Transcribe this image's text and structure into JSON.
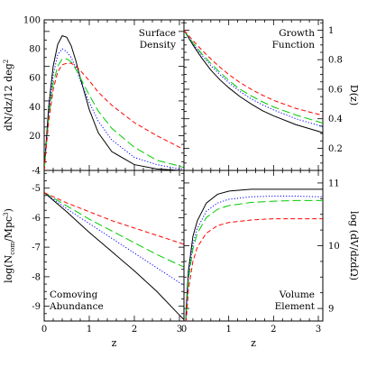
{
  "chart_data": [
    {
      "type": "line",
      "panel": "top-left",
      "title": [
        "Surface",
        "Density"
      ],
      "title_position": "top-right",
      "xlabel": "",
      "ylabel": "dN/dz/12 deg²",
      "ylabel_side": "left",
      "xlim": [
        0,
        3.1
      ],
      "ylim": [
        -4,
        100
      ],
      "xticks": [
        0,
        1,
        2,
        3
      ],
      "yticks": [
        -4,
        20,
        40,
        60,
        80,
        100
      ],
      "ytick_labels": [
        "-4",
        "20",
        "40",
        "60",
        "80",
        "100"
      ],
      "show_x_tick_labels": false,
      "series": [
        {
          "color": "#000000",
          "dash": "solid",
          "x": [
            0,
            0.1,
            0.2,
            0.3,
            0.4,
            0.5,
            0.6,
            0.7,
            0.8,
            1.0,
            1.2,
            1.5,
            2.0,
            2.5,
            3.0,
            3.1
          ],
          "y": [
            -4,
            40,
            68,
            83,
            89,
            88,
            82,
            72,
            60,
            38,
            22,
            9,
            0,
            -3,
            -4,
            -4
          ]
        },
        {
          "color": "#0000ff",
          "dash": "dotted",
          "x": [
            0,
            0.1,
            0.2,
            0.3,
            0.4,
            0.5,
            0.6,
            0.7,
            0.8,
            1.0,
            1.2,
            1.5,
            2.0,
            2.5,
            3.0,
            3.1
          ],
          "y": [
            -4,
            35,
            62,
            76,
            80,
            78,
            74,
            67,
            58,
            43,
            30,
            17,
            5,
            0,
            -3,
            -3
          ]
        },
        {
          "color": "#00cc00",
          "dash": "longdash",
          "x": [
            0,
            0.1,
            0.2,
            0.3,
            0.4,
            0.5,
            0.6,
            0.7,
            0.8,
            1.0,
            1.2,
            1.5,
            2.0,
            2.5,
            3.0,
            3.1
          ],
          "y": [
            -4,
            33,
            56,
            68,
            73,
            73,
            71,
            66,
            60,
            48,
            37,
            25,
            12,
            3,
            -1,
            -2
          ]
        },
        {
          "color": "#ff0000",
          "dash": "dashed",
          "x": [
            0,
            0.1,
            0.2,
            0.3,
            0.4,
            0.5,
            0.6,
            0.7,
            0.8,
            1.0,
            1.2,
            1.5,
            2.0,
            2.5,
            3.0,
            3.1
          ],
          "y": [
            -4,
            30,
            52,
            64,
            69,
            70,
            70,
            68,
            65,
            58,
            50,
            41,
            29,
            20,
            12,
            11
          ]
        }
      ]
    },
    {
      "type": "line",
      "panel": "top-right",
      "title": [
        "Growth",
        "Function"
      ],
      "title_position": "top-right",
      "xlabel": "",
      "ylabel": "D(z)",
      "ylabel_side": "right",
      "xlim": [
        0,
        3.1
      ],
      "ylim": [
        0.05,
        1.07
      ],
      "xticks": [
        0,
        1,
        2,
        3
      ],
      "yticks": [
        0.2,
        0.4,
        0.6,
        0.8,
        1.0
      ],
      "ytick_labels": [
        "0.2",
        "0.4",
        "0.6",
        "0.8",
        "1"
      ],
      "show_x_tick_labels": false,
      "series": [
        {
          "color": "#000000",
          "dash": "solid",
          "x": [
            0,
            0.2,
            0.4,
            0.6,
            0.8,
            1.0,
            1.25,
            1.5,
            1.75,
            2.0,
            2.5,
            3.0,
            3.1
          ],
          "y": [
            1.0,
            0.9,
            0.81,
            0.73,
            0.665,
            0.61,
            0.55,
            0.5,
            0.455,
            0.42,
            0.36,
            0.315,
            0.305
          ]
        },
        {
          "color": "#0000ff",
          "dash": "dotted",
          "x": [
            0,
            0.2,
            0.4,
            0.6,
            0.8,
            1.0,
            1.25,
            1.5,
            1.75,
            2.0,
            2.5,
            3.0,
            3.1
          ],
          "y": [
            1.0,
            0.91,
            0.83,
            0.76,
            0.7,
            0.645,
            0.585,
            0.535,
            0.495,
            0.46,
            0.4,
            0.355,
            0.345
          ]
        },
        {
          "color": "#00cc00",
          "dash": "longdash",
          "x": [
            0,
            0.2,
            0.4,
            0.6,
            0.8,
            1.0,
            1.25,
            1.5,
            1.75,
            2.0,
            2.5,
            3.0,
            3.1
          ],
          "y": [
            1.0,
            0.915,
            0.84,
            0.775,
            0.715,
            0.66,
            0.6,
            0.555,
            0.515,
            0.48,
            0.425,
            0.38,
            0.37
          ]
        },
        {
          "color": "#ff0000",
          "dash": "dashed",
          "x": [
            0,
            0.2,
            0.4,
            0.6,
            0.8,
            1.0,
            1.25,
            1.5,
            1.75,
            2.0,
            2.5,
            3.0,
            3.1
          ],
          "y": [
            1.0,
            0.93,
            0.865,
            0.805,
            0.75,
            0.7,
            0.645,
            0.6,
            0.56,
            0.525,
            0.47,
            0.43,
            0.42
          ]
        }
      ]
    },
    {
      "type": "line",
      "panel": "bottom-left",
      "title": [
        "Comoving",
        "Abundance"
      ],
      "title_position": "bottom-left",
      "xlabel": "z",
      "ylabel": "log(N_com/Mpc³)",
      "ylabel_side": "left",
      "xlim": [
        0,
        3.1
      ],
      "ylim": [
        -9.5,
        -4.4
      ],
      "xticks": [
        0,
        1,
        2,
        3
      ],
      "yticks": [
        -9,
        -8,
        -7,
        -6,
        -5
      ],
      "ytick_labels": [
        "-9",
        "-8",
        "-7",
        "-6",
        "-5"
      ],
      "show_x_tick_labels": true,
      "series": [
        {
          "color": "#000000",
          "dash": "solid",
          "x": [
            0,
            0.5,
            1.0,
            1.5,
            2.0,
            2.5,
            3.0,
            3.1
          ],
          "y": [
            -5.15,
            -5.8,
            -6.5,
            -7.15,
            -7.8,
            -8.5,
            -9.3,
            -9.45
          ]
        },
        {
          "color": "#0000ff",
          "dash": "dotted",
          "x": [
            0,
            0.5,
            1.0,
            1.5,
            2.0,
            2.5,
            3.0,
            3.1
          ],
          "y": [
            -5.15,
            -5.7,
            -6.2,
            -6.7,
            -7.2,
            -7.7,
            -8.2,
            -8.3
          ]
        },
        {
          "color": "#00cc00",
          "dash": "longdash",
          "x": [
            0,
            0.5,
            1.0,
            1.5,
            2.0,
            2.5,
            3.0,
            3.1
          ],
          "y": [
            -5.15,
            -5.6,
            -6.05,
            -6.45,
            -6.85,
            -7.25,
            -7.6,
            -7.67
          ]
        },
        {
          "color": "#ff0000",
          "dash": "dashed",
          "x": [
            0,
            0.5,
            1.0,
            1.5,
            2.0,
            2.5,
            3.0,
            3.1
          ],
          "y": [
            -5.15,
            -5.5,
            -5.8,
            -6.1,
            -6.35,
            -6.6,
            -6.85,
            -6.9
          ]
        }
      ]
    },
    {
      "type": "line",
      "panel": "bottom-right",
      "title": [
        "Volume",
        "Element"
      ],
      "title_position": "bottom-right",
      "xlabel": "z",
      "ylabel": "log (dV/dzdΩ)",
      "ylabel_side": "right",
      "xlim": [
        0,
        3.1
      ],
      "ylim": [
        8.8,
        11.2
      ],
      "xticks": [
        0,
        1,
        2,
        3
      ],
      "yticks": [
        9,
        10,
        11
      ],
      "ytick_labels": [
        "9",
        "10",
        "11"
      ],
      "show_x_tick_labels": true,
      "series": [
        {
          "color": "#000000",
          "dash": "solid",
          "x": [
            0.02,
            0.05,
            0.1,
            0.2,
            0.3,
            0.5,
            0.75,
            1.0,
            1.5,
            2.0,
            2.5,
            3.0,
            3.1
          ],
          "y": [
            8.2,
            9.0,
            9.6,
            10.15,
            10.4,
            10.68,
            10.82,
            10.87,
            10.9,
            10.9,
            10.9,
            10.9,
            10.9
          ]
        },
        {
          "color": "#0000ff",
          "dash": "dotted",
          "x": [
            0.02,
            0.05,
            0.1,
            0.2,
            0.3,
            0.5,
            0.75,
            1.0,
            1.5,
            2.0,
            2.5,
            3.0,
            3.1
          ],
          "y": [
            8.2,
            8.95,
            9.52,
            10.03,
            10.28,
            10.55,
            10.68,
            10.74,
            10.78,
            10.79,
            10.79,
            10.78,
            10.78
          ]
        },
        {
          "color": "#00cc00",
          "dash": "longdash",
          "x": [
            0.02,
            0.05,
            0.1,
            0.2,
            0.3,
            0.5,
            0.75,
            1.0,
            1.5,
            2.0,
            2.5,
            3.0,
            3.1
          ],
          "y": [
            8.2,
            8.9,
            9.45,
            9.95,
            10.2,
            10.45,
            10.58,
            10.64,
            10.69,
            10.71,
            10.72,
            10.72,
            10.72
          ]
        },
        {
          "color": "#ff0000",
          "dash": "dashed",
          "x": [
            0.02,
            0.05,
            0.1,
            0.2,
            0.3,
            0.5,
            0.75,
            1.0,
            1.5,
            2.0,
            2.5,
            3.0,
            3.1
          ],
          "y": [
            8.2,
            8.8,
            9.3,
            9.75,
            9.98,
            10.2,
            10.32,
            10.37,
            10.41,
            10.43,
            10.43,
            10.43,
            10.43
          ]
        }
      ]
    }
  ]
}
